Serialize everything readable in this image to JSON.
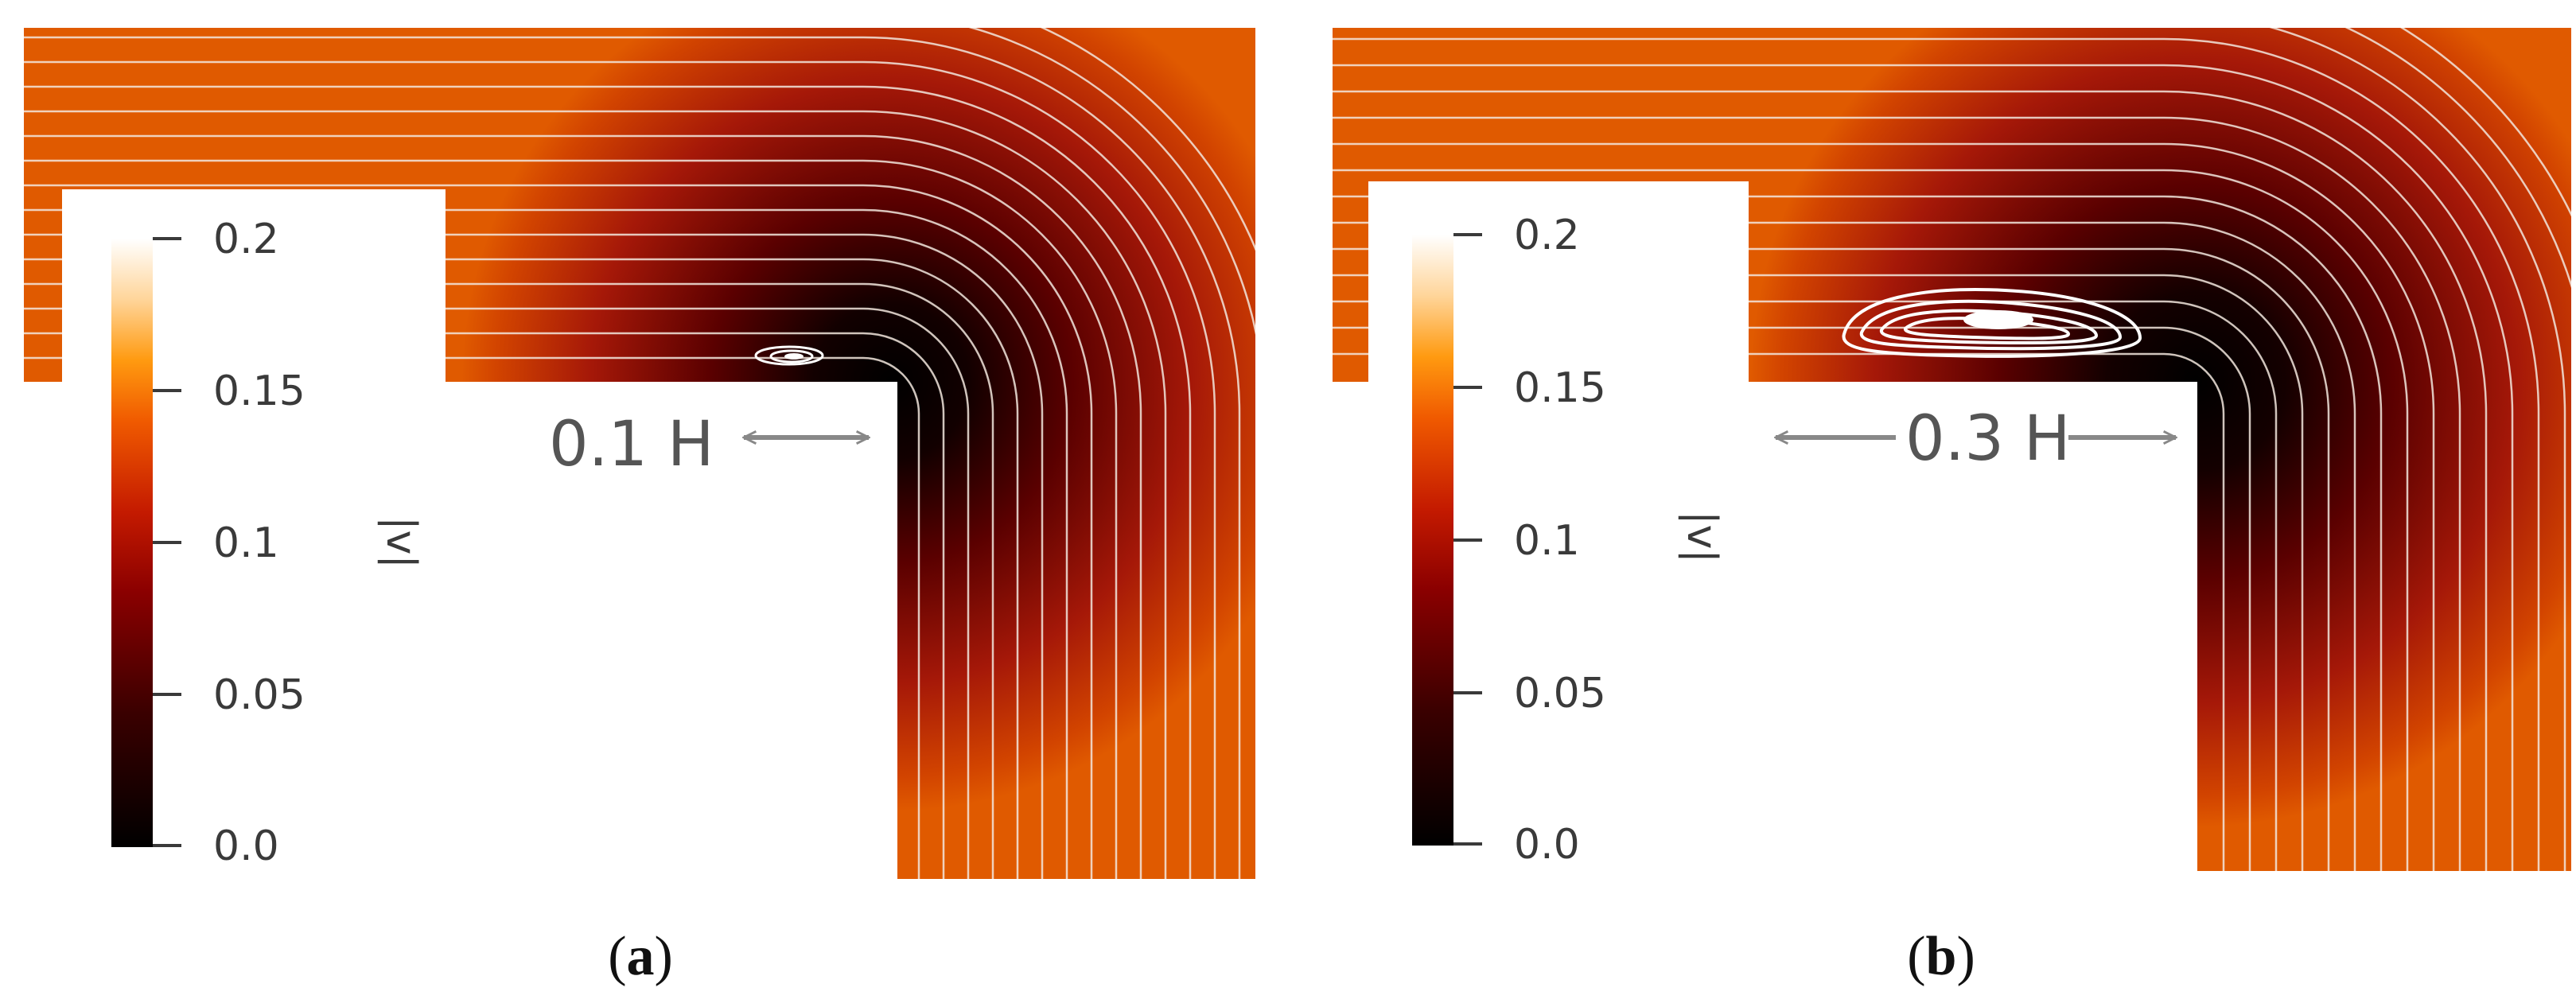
{
  "panels": [
    {
      "id": "a",
      "caption_open": "(",
      "caption_letter": "a",
      "caption_close": ")",
      "legend_ticks": [
        "0.2",
        "0.15",
        "0.1",
        "0.05",
        "0.0"
      ],
      "legend_label": "|v|",
      "annotation": "0.1 H"
    },
    {
      "id": "b",
      "caption_open": "(",
      "caption_letter": "b",
      "caption_close": ")",
      "legend_ticks": [
        "0.2",
        "0.15",
        "0.1",
        "0.05",
        "0.0"
      ],
      "legend_label": "|v|",
      "annotation": "0.3 H"
    }
  ],
  "colors": {
    "colormap": [
      "#000000",
      "#3a0000",
      "#8b0000",
      "#c41a00",
      "#f05a00",
      "#ff9a10",
      "#ffd59a",
      "#ffffff"
    ],
    "streamline": "#f2e6dd",
    "vortex": "#ffffff",
    "annotation": "#888888"
  }
}
